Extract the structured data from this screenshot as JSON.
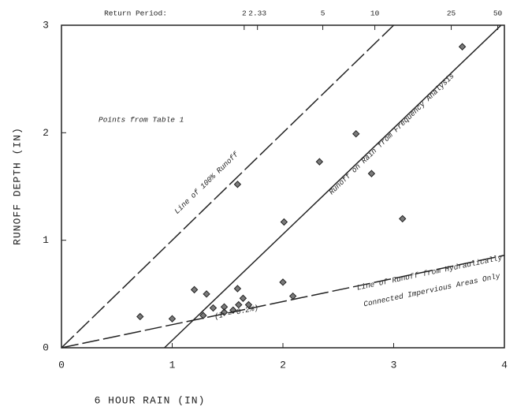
{
  "chart_data": {
    "type": "scatter",
    "xlabel": "6 HOUR RAIN (IN)",
    "ylabel": "RUNOFF DEPTH (IN)",
    "xlim": [
      0,
      4
    ],
    "ylim": [
      0,
      3
    ],
    "xticks": [
      0,
      1,
      2,
      3,
      4
    ],
    "yticks": [
      0,
      1,
      2,
      3
    ],
    "top_axis": {
      "label": "Return Period:",
      "ticks": [
        {
          "value": 1.65,
          "label": "2"
        },
        {
          "value": 1.77,
          "label": "2.33"
        },
        {
          "value": 2.36,
          "label": "5"
        },
        {
          "value": 2.83,
          "label": "10"
        },
        {
          "value": 3.52,
          "label": "25"
        },
        {
          "value": 3.94,
          "label": "50"
        }
      ]
    },
    "series": [
      {
        "name": "Points from Table 1",
        "color": "#222",
        "x": [
          0.71,
          1.0,
          1.2,
          1.31,
          1.28,
          1.37,
          1.47,
          1.47,
          1.55,
          1.59,
          1.6,
          1.64,
          1.69,
          1.59,
          2.01,
          2.0,
          2.09,
          2.33,
          2.66,
          2.8,
          3.08,
          3.62
        ],
        "values": [
          0.29,
          0.27,
          0.54,
          0.5,
          0.3,
          0.37,
          0.38,
          0.33,
          0.35,
          0.55,
          0.4,
          0.46,
          0.4,
          1.52,
          1.17,
          0.61,
          0.48,
          1.73,
          1.99,
          1.62,
          1.2,
          2.8
        ]
      }
    ],
    "lines": [
      {
        "name": "Line of 100% Runoff",
        "x": [
          0,
          3
        ],
        "y": [
          0,
          3
        ],
        "style": "dashed"
      },
      {
        "name": "Runoff on Rain from Frequency Analysis",
        "x": [
          0.93,
          3.97
        ],
        "y": [
          0,
          3
        ],
        "style": "solid"
      },
      {
        "name": "Line of Runoff from Hydraulically",
        "note": "Connected Impervious Areas Only",
        "x": [
          0,
          4
        ],
        "y": [
          0,
          0.86
        ],
        "style": "dashed"
      }
    ],
    "annotations": [
      "(I = 0.2%)"
    ]
  }
}
